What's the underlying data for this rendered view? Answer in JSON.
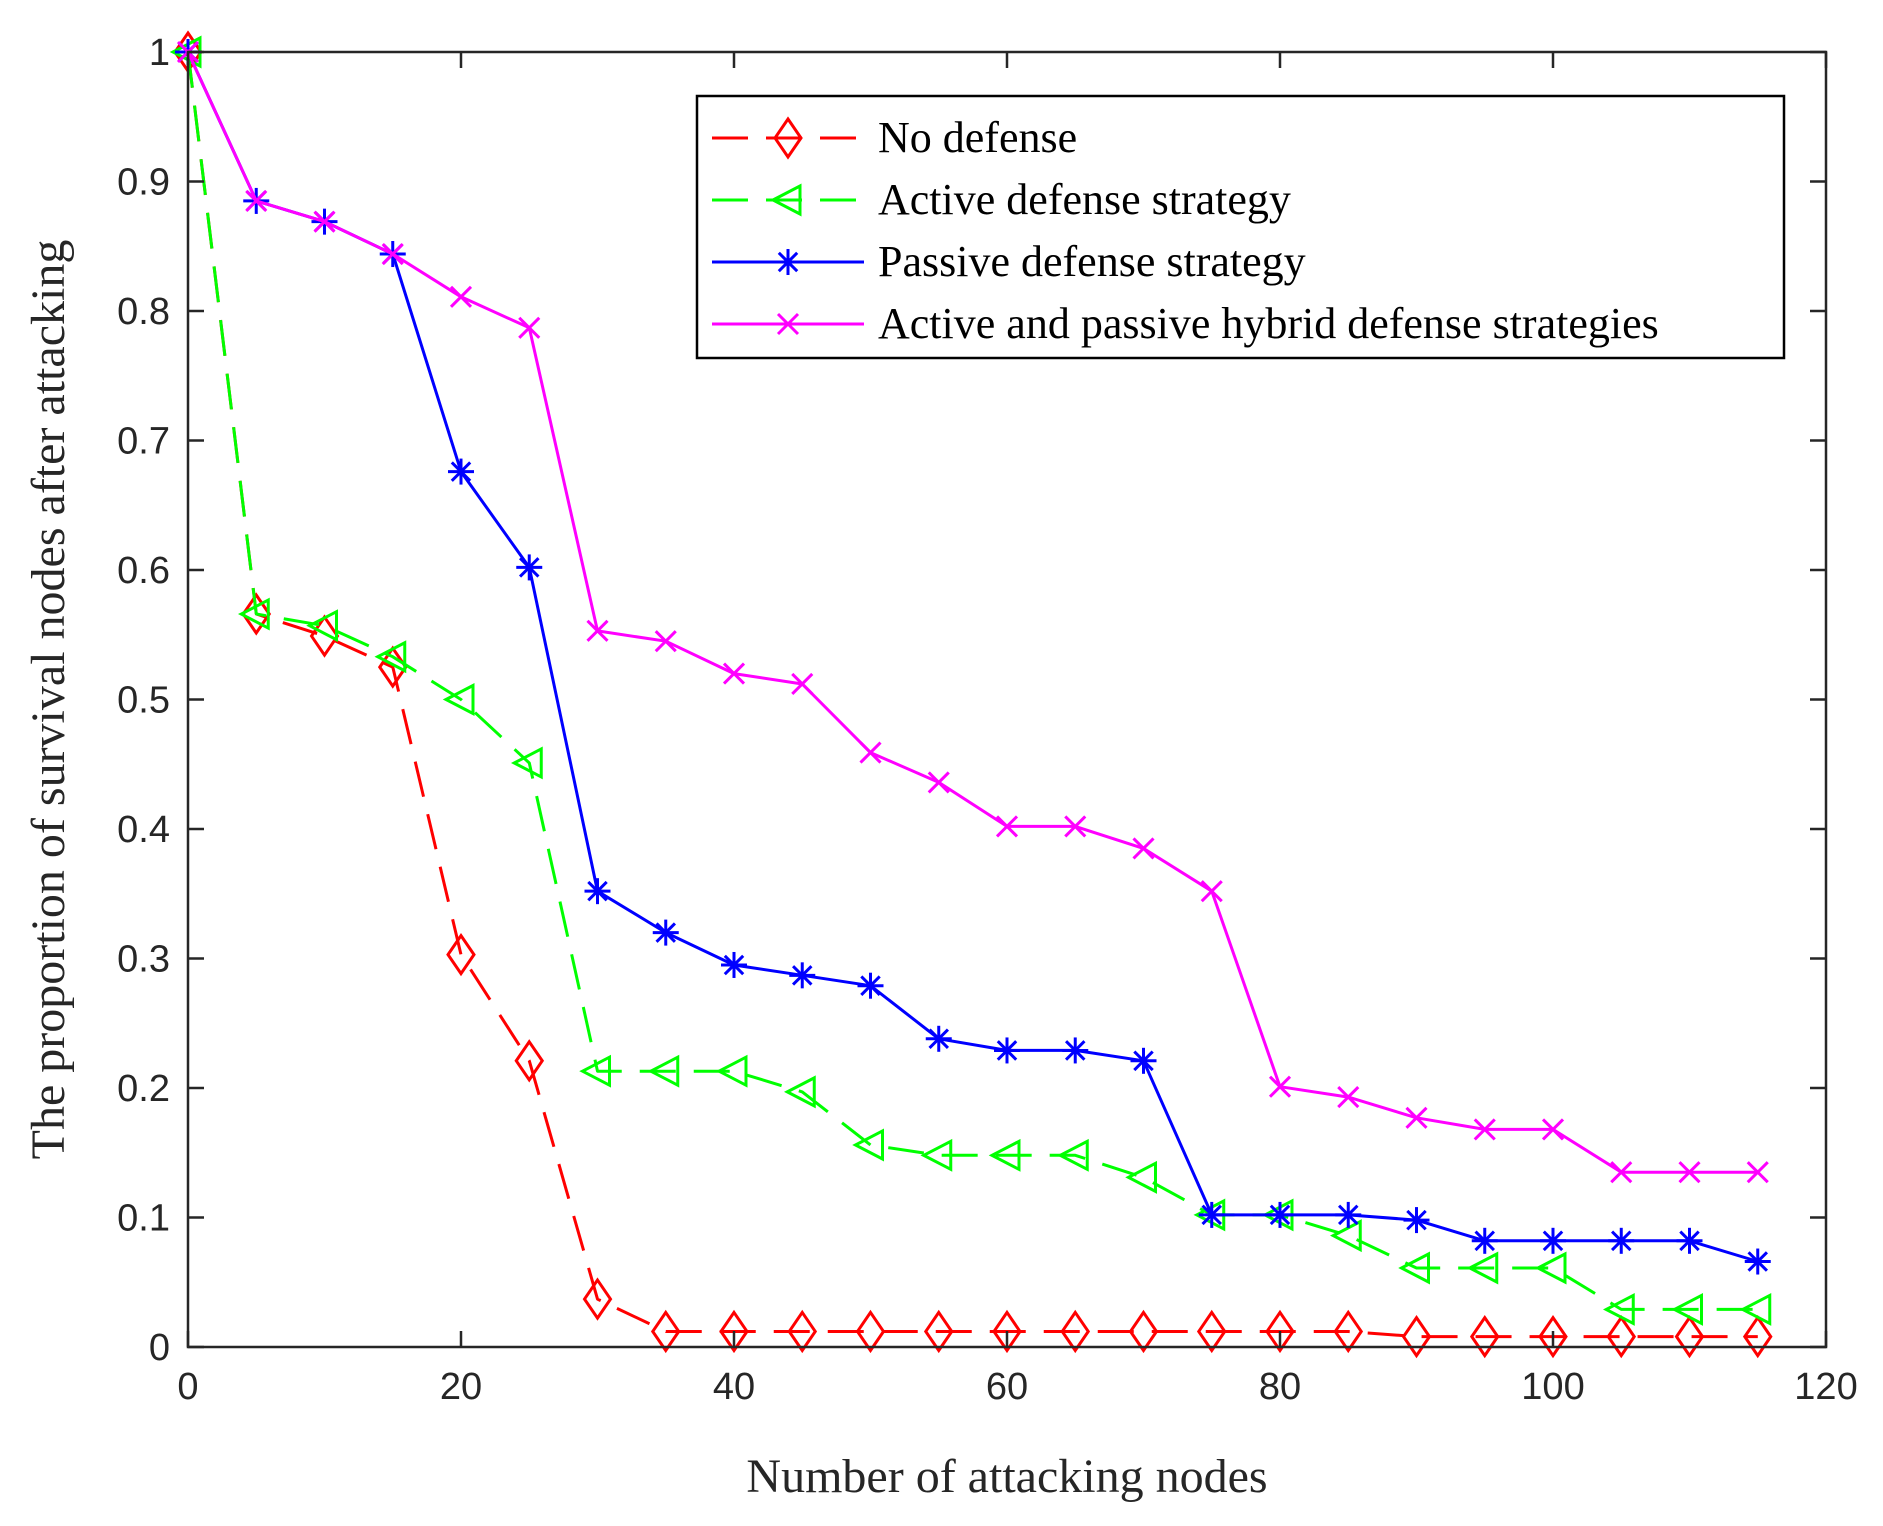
{
  "chart_data": {
    "type": "line",
    "title": "",
    "xlabel": "Number of attacking nodes",
    "ylabel": "The proportion of survival nodes after attacking",
    "xlim": [
      0,
      120
    ],
    "ylim": [
      0,
      1
    ],
    "xticks": [
      0,
      20,
      40,
      60,
      80,
      100,
      120
    ],
    "yticks": [
      0,
      0.1,
      0.2,
      0.3,
      0.4,
      0.5,
      0.6,
      0.7,
      0.8,
      0.9,
      1
    ],
    "xtick_labels": [
      "0",
      "20",
      "40",
      "60",
      "80",
      "100",
      "120"
    ],
    "ytick_labels": [
      "0",
      "0.1",
      "0.2",
      "0.3",
      "0.4",
      "0.5",
      "0.6",
      "0.7",
      "0.8",
      "0.9",
      "1"
    ],
    "grid": false,
    "legend_position": "top-right",
    "x": [
      0,
      5,
      10,
      15,
      20,
      25,
      30,
      35,
      40,
      45,
      50,
      55,
      60,
      65,
      70,
      75,
      80,
      85,
      90,
      95,
      100,
      105,
      110,
      115
    ],
    "series": [
      {
        "name": "No defense",
        "color": "#ff0000",
        "line_style": "dashed",
        "marker": "diamond",
        "values": [
          1.0,
          0.566,
          0.549,
          0.525,
          0.303,
          0.221,
          0.037,
          0.012,
          0.012,
          0.012,
          0.012,
          0.012,
          0.012,
          0.012,
          0.012,
          0.012,
          0.012,
          0.012,
          0.008,
          0.008,
          0.008,
          0.008,
          0.008,
          0.008
        ]
      },
      {
        "name": "Active defense strategy",
        "color": "#00ff00",
        "line_style": "dashed",
        "marker": "triangle-left",
        "values": [
          1.0,
          0.566,
          0.557,
          0.533,
          0.5,
          0.451,
          0.213,
          0.213,
          0.213,
          0.197,
          0.156,
          0.148,
          0.148,
          0.148,
          0.131,
          0.102,
          0.102,
          0.086,
          0.061,
          0.061,
          0.061,
          0.029,
          0.029,
          0.029
        ]
      },
      {
        "name": "Passive defense strategy",
        "color": "#0000ff",
        "line_style": "solid",
        "marker": "asterisk",
        "values": [
          1.0,
          0.885,
          0.869,
          0.844,
          0.676,
          0.602,
          0.352,
          0.32,
          0.295,
          0.287,
          0.279,
          0.238,
          0.229,
          0.229,
          0.221,
          0.102,
          0.102,
          0.102,
          0.098,
          0.082,
          0.082,
          0.082,
          0.082,
          0.066
        ]
      },
      {
        "name": "Active and passive hybrid defense strategies",
        "color": "#ff00ff",
        "line_style": "solid",
        "marker": "x",
        "values": [
          1.0,
          0.885,
          0.869,
          0.844,
          0.811,
          0.787,
          0.553,
          0.545,
          0.52,
          0.512,
          0.459,
          0.436,
          0.402,
          0.402,
          0.385,
          0.352,
          0.201,
          0.193,
          0.177,
          0.168,
          0.168,
          0.135,
          0.135,
          0.135
        ]
      }
    ]
  }
}
